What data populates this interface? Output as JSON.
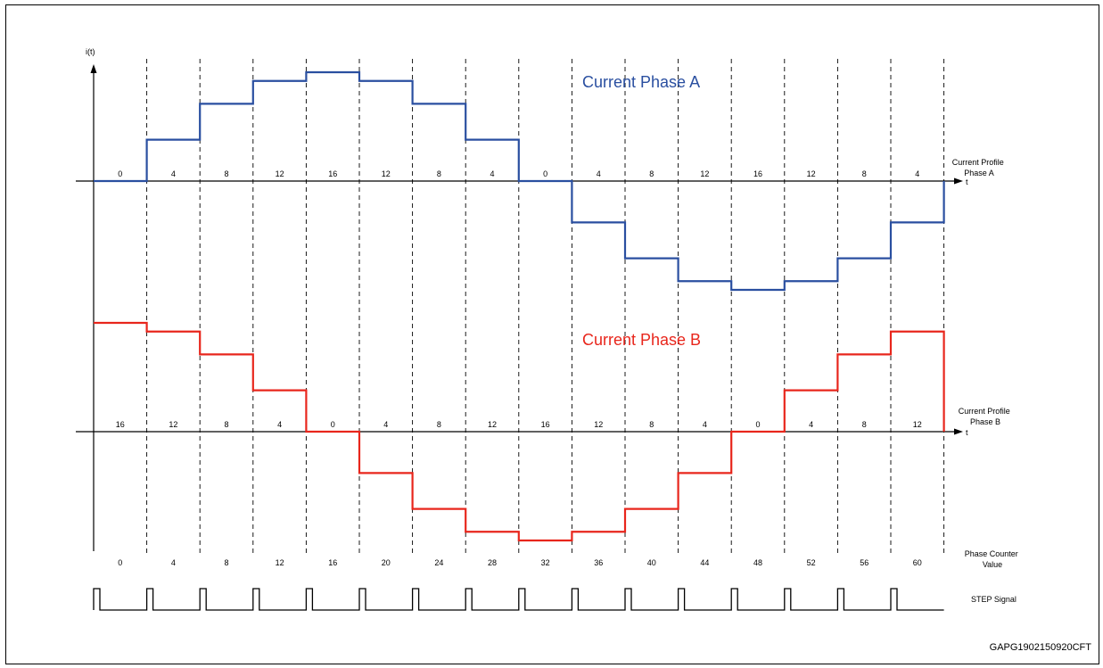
{
  "axis": {
    "y_label": "i(t)",
    "t_label": "t"
  },
  "phase_a": {
    "title": "Current Phase A",
    "color": "#2a4fa0",
    "profile_label": [
      "Current Profile",
      "Phase A"
    ],
    "segment_labels": [
      "0",
      "4",
      "8",
      "12",
      "16",
      "12",
      "8",
      "4",
      "0",
      "4",
      "8",
      "12",
      "16",
      "12",
      "8",
      "4"
    ],
    "levels": [
      0,
      0.38,
      0.71,
      0.92,
      1.0,
      0.92,
      0.71,
      0.38,
      0,
      -0.38,
      -0.71,
      -0.92,
      -1.0,
      -0.92,
      -0.71,
      -0.38
    ]
  },
  "phase_b": {
    "title": "Current Phase B",
    "color": "#e8261c",
    "profile_label": [
      "Current Profile",
      "Phase B"
    ],
    "segment_labels": [
      "16",
      "12",
      "8",
      "4",
      "0",
      "4",
      "8",
      "12",
      "16",
      "12",
      "8",
      "4",
      "0",
      "4",
      "8",
      "12"
    ],
    "levels": [
      1.0,
      0.92,
      0.71,
      0.38,
      0,
      -0.38,
      -0.71,
      -0.92,
      -1.0,
      -0.92,
      -0.71,
      -0.38,
      0,
      0.38,
      0.71,
      0.92
    ]
  },
  "phase_counter": {
    "label": [
      "Phase Counter",
      "Value"
    ],
    "values": [
      "0",
      "4",
      "8",
      "12",
      "16",
      "20",
      "24",
      "28",
      "32",
      "36",
      "40",
      "44",
      "48",
      "52",
      "56",
      "60"
    ]
  },
  "step_signal": {
    "label": "STEP Signal"
  },
  "footer_code": "GAPG1902150920CFT"
}
